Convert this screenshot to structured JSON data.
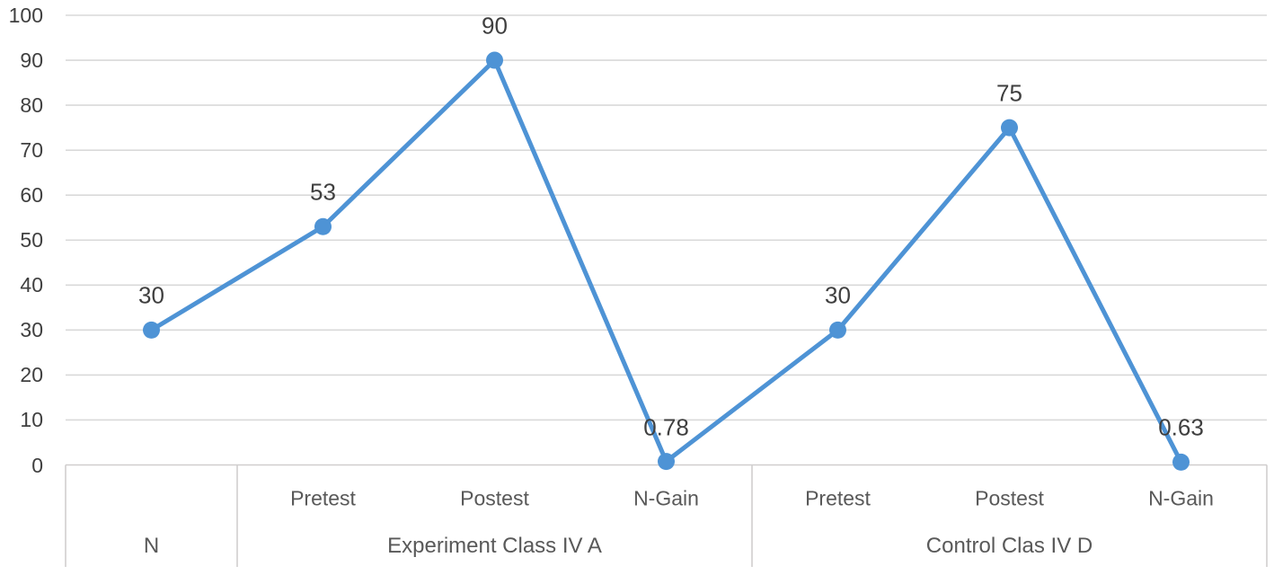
{
  "chart_data": {
    "type": "line",
    "title": "",
    "xlabel": "",
    "ylabel": "",
    "legend": "none",
    "grid": true,
    "series": [
      {
        "name": "values",
        "values": [
          30,
          53,
          90,
          0.78,
          30,
          75,
          0.63
        ],
        "point_labels": [
          "30",
          "53",
          "90",
          "0.78",
          "30",
          "75",
          "0.63"
        ]
      }
    ],
    "category_groups": [
      {
        "label": "N",
        "leaves": [
          ""
        ]
      },
      {
        "label": "Experiment Class IV A",
        "leaves": [
          "Pretest",
          "Postest",
          "N-Gain"
        ]
      },
      {
        "label": "Control Clas IV D",
        "leaves": [
          "Pretest",
          "Postest",
          "N-Gain"
        ]
      }
    ],
    "y_axis": {
      "min": 0,
      "max": 100,
      "step": 10,
      "tick_labels": [
        "0",
        "10",
        "20",
        "30",
        "40",
        "50",
        "60",
        "70",
        "80",
        "90",
        "100"
      ]
    },
    "colors": {
      "line": "#4E93D5",
      "marker": "#4E93D5",
      "gridline": "#D9D9D9",
      "axis_line": "#D0CECE",
      "table_border": "#D0CECE",
      "value_text": "#3F3F3F",
      "category_text": "#595959",
      "background": "#FFFFFF"
    }
  }
}
